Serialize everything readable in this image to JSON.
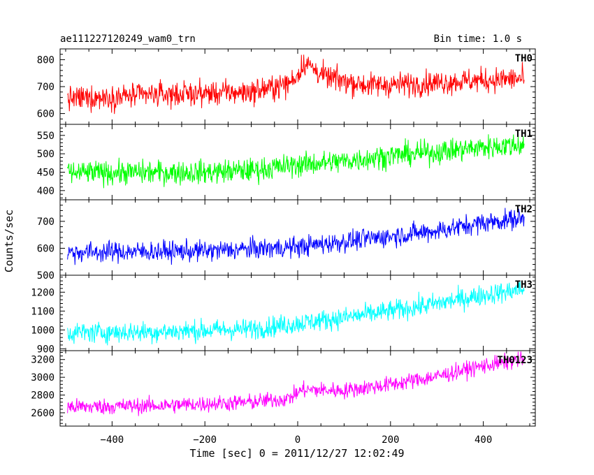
{
  "header": {
    "left_title": "ae111227120249_wam0_trn",
    "right_title": "Bin time: 1.0 s"
  },
  "axes": {
    "ylabel": "Counts/sec",
    "xlabel": "Time [sec] 0 = 2011/12/27 12:02:49"
  },
  "chart_data": {
    "type": "line",
    "title": "ae111227120249_wam0_trn",
    "subtitle": "Bin time: 1.0 s",
    "xlabel": "Time [sec] 0 = 2011/12/27 12:02:49",
    "ylabel": "Counts/sec",
    "xlim": [
      -512,
      512
    ],
    "x_ticks": [
      -400,
      -200,
      0,
      200,
      400
    ],
    "x_tick_labels": [
      "−400",
      "−200",
      "0",
      "200",
      "400"
    ],
    "x_range_data": [
      -496,
      488
    ],
    "grid": false,
    "legend": "none",
    "series": [
      {
        "name": "TH0",
        "color": "#ff0000",
        "ylim": [
          560,
          840
        ],
        "y_ticks": [
          600,
          700,
          800
        ],
        "noise_amplitude": 45,
        "trend": [
          {
            "x": -496,
            "y": 655
          },
          {
            "x": -300,
            "y": 670
          },
          {
            "x": -100,
            "y": 680
          },
          {
            "x": -20,
            "y": 710
          },
          {
            "x": 0,
            "y": 745
          },
          {
            "x": 15,
            "y": 790
          },
          {
            "x": 60,
            "y": 735
          },
          {
            "x": 150,
            "y": 705
          },
          {
            "x": 250,
            "y": 710
          },
          {
            "x": 350,
            "y": 720
          },
          {
            "x": 488,
            "y": 730
          }
        ]
      },
      {
        "name": "TH1",
        "color": "#00ff00",
        "ylim": [
          375,
          580
        ],
        "y_ticks": [
          400,
          450,
          500,
          550
        ],
        "noise_amplitude": 32,
        "trend": [
          {
            "x": -496,
            "y": 448
          },
          {
            "x": -200,
            "y": 450
          },
          {
            "x": -100,
            "y": 455
          },
          {
            "x": 0,
            "y": 470
          },
          {
            "x": 100,
            "y": 480
          },
          {
            "x": 200,
            "y": 495
          },
          {
            "x": 300,
            "y": 505
          },
          {
            "x": 400,
            "y": 518
          },
          {
            "x": 488,
            "y": 525
          }
        ]
      },
      {
        "name": "TH2",
        "color": "#0000ff",
        "ylim": [
          500,
          780
        ],
        "y_ticks": [
          500,
          600,
          700
        ],
        "noise_amplitude": 38,
        "trend": [
          {
            "x": -496,
            "y": 585
          },
          {
            "x": -200,
            "y": 590
          },
          {
            "x": 0,
            "y": 605
          },
          {
            "x": 100,
            "y": 625
          },
          {
            "x": 200,
            "y": 645
          },
          {
            "x": 300,
            "y": 665
          },
          {
            "x": 400,
            "y": 695
          },
          {
            "x": 488,
            "y": 712
          }
        ]
      },
      {
        "name": "TH3",
        "color": "#00ffff",
        "ylim": [
          890,
          1290
        ],
        "y_ticks": [
          900,
          1000,
          1100,
          1200
        ],
        "noise_amplitude": 55,
        "trend": [
          {
            "x": -496,
            "y": 985
          },
          {
            "x": -300,
            "y": 990
          },
          {
            "x": -100,
            "y": 1005
          },
          {
            "x": 0,
            "y": 1035
          },
          {
            "x": 100,
            "y": 1065
          },
          {
            "x": 200,
            "y": 1100
          },
          {
            "x": 300,
            "y": 1140
          },
          {
            "x": 400,
            "y": 1185
          },
          {
            "x": 488,
            "y": 1215
          }
        ]
      },
      {
        "name": "TH0123",
        "color": "#ff00ff",
        "ylim": [
          2450,
          3300
        ],
        "y_ticks": [
          2600,
          2800,
          3000,
          3200
        ],
        "noise_amplitude": 90,
        "trend": [
          {
            "x": -496,
            "y": 2665
          },
          {
            "x": -300,
            "y": 2680
          },
          {
            "x": -100,
            "y": 2720
          },
          {
            "x": -20,
            "y": 2760
          },
          {
            "x": 10,
            "y": 2860
          },
          {
            "x": 100,
            "y": 2850
          },
          {
            "x": 200,
            "y": 2920
          },
          {
            "x": 300,
            "y": 3010
          },
          {
            "x": 400,
            "y": 3130
          },
          {
            "x": 488,
            "y": 3200
          }
        ]
      }
    ]
  }
}
